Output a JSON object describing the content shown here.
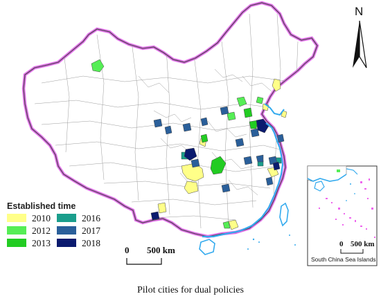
{
  "north_label": "N",
  "legend": {
    "title": "Established time",
    "items": [
      {
        "year": "2010",
        "color": "#ffff88"
      },
      {
        "year": "2012",
        "color": "#55ee55"
      },
      {
        "year": "2013",
        "color": "#22cc22"
      },
      {
        "year": "2016",
        "color": "#1a9e8c"
      },
      {
        "year": "2017",
        "color": "#2a5f9a"
      },
      {
        "year": "2018",
        "color": "#0a1a6e"
      }
    ]
  },
  "scale_bar": {
    "zero": "0",
    "label": "500 km"
  },
  "inset": {
    "scale_zero": "0",
    "scale_label": "500 km",
    "caption": "South China Sea Islands"
  },
  "caption": "Pilot cities for dual policies",
  "colors": {
    "border_outer": "#e070e8",
    "border_inner": "#555555",
    "coast": "#33aaee",
    "island_pink": "#ee66ee"
  }
}
